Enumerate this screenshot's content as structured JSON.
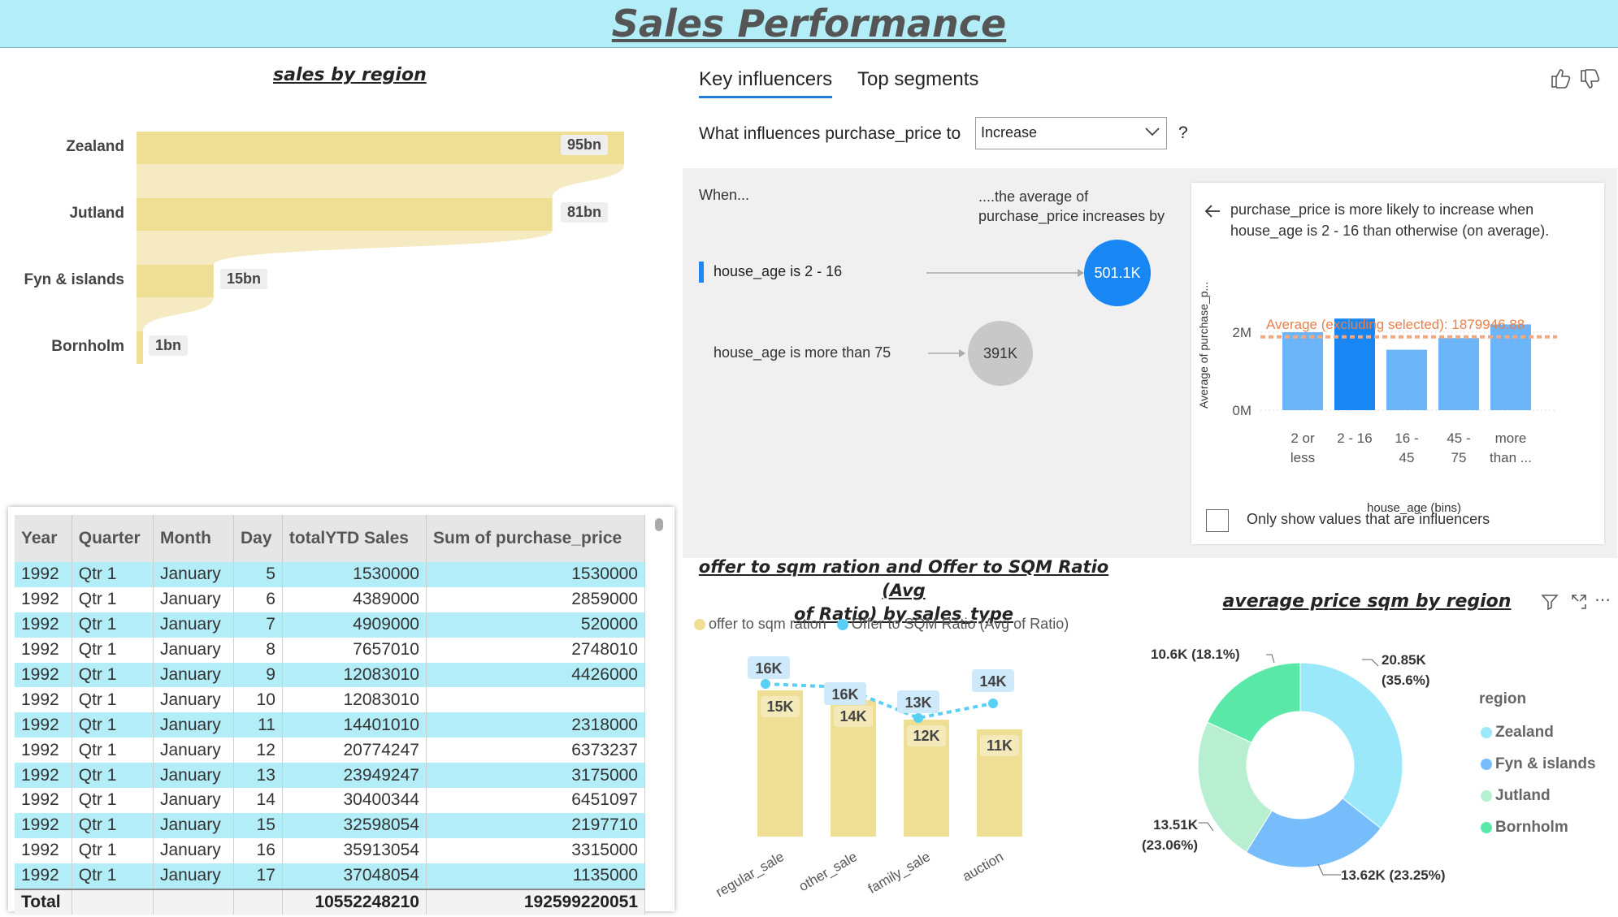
{
  "page_title": "Sales Performance",
  "sales_by_region": {
    "title": "sales by region",
    "rows": [
      {
        "label": "Zealand",
        "value_label": "95bn"
      },
      {
        "label": "Jutland",
        "value_label": "81bn"
      },
      {
        "label": "Fyn & islands",
        "value_label": "15bn"
      },
      {
        "label": "Bornholm",
        "value_label": "1bn"
      }
    ]
  },
  "key_influencers": {
    "tabs": [
      "Key influencers",
      "Top segments"
    ],
    "question_prefix": "What influences purchase_price to",
    "dropdown_value": "Increase",
    "question_mark": "?",
    "when_label": "When...",
    "avg_label": "....the average of purchase_price increases by",
    "influencers": [
      {
        "label": "house_age is 2 - 16",
        "value": "501.1K"
      },
      {
        "label": "house_age is more than 75",
        "value": "391K"
      }
    ],
    "detail": {
      "text": "purchase_price is more likely to increase when house_age is 2 - 16 than otherwise (on average).",
      "y_axis_label": "Average of purchase_p...",
      "y_ticks": [
        "2M",
        "0M"
      ],
      "x_axis_label": "house_age (bins)",
      "average_line_label": "Average (excluding selected): 1879946.88",
      "checkbox_label": "Only show values that are influencers"
    }
  },
  "table": {
    "headers": [
      "Year",
      "Quarter",
      "Month",
      "Day",
      "totalYTD Sales",
      "Sum of purchase_price"
    ],
    "rows": [
      [
        "1992",
        "Qtr 1",
        "January",
        "5",
        "1530000",
        "1530000"
      ],
      [
        "1992",
        "Qtr 1",
        "January",
        "6",
        "4389000",
        "2859000"
      ],
      [
        "1992",
        "Qtr 1",
        "January",
        "7",
        "4909000",
        "520000"
      ],
      [
        "1992",
        "Qtr 1",
        "January",
        "8",
        "7657010",
        "2748010"
      ],
      [
        "1992",
        "Qtr 1",
        "January",
        "9",
        "12083010",
        "4426000"
      ],
      [
        "1992",
        "Qtr 1",
        "January",
        "10",
        "12083010",
        ""
      ],
      [
        "1992",
        "Qtr 1",
        "January",
        "11",
        "14401010",
        "2318000"
      ],
      [
        "1992",
        "Qtr 1",
        "January",
        "12",
        "20774247",
        "6373237"
      ],
      [
        "1992",
        "Qtr 1",
        "January",
        "13",
        "23949247",
        "3175000"
      ],
      [
        "1992",
        "Qtr 1",
        "January",
        "14",
        "30400344",
        "6451097"
      ],
      [
        "1992",
        "Qtr 1",
        "January",
        "15",
        "32598054",
        "2197710"
      ],
      [
        "1992",
        "Qtr 1",
        "January",
        "16",
        "35913054",
        "3315000"
      ],
      [
        "1992",
        "Qtr 1",
        "January",
        "17",
        "37048054",
        "1135000"
      ]
    ],
    "total": [
      "Total",
      "",
      "",
      "",
      "10552248210",
      "192599220051"
    ]
  },
  "offer_chart": {
    "title_line1": "offer to sqm ration and Offer to SQM Ratio (Avg",
    "title_line2": "of Ratio) by sales_type",
    "legend": [
      "offer to sqm ration",
      "Offer to SQM Ratio (Avg of Ratio)"
    ]
  },
  "donut": {
    "title": "average price sqm by region",
    "legend_title": "region",
    "legend": [
      "Zealand",
      "Fyn & islands",
      "Jutland",
      "Bornholm"
    ],
    "labels": [
      {
        "line1": "20.85K",
        "line2": "(35.6%)"
      },
      {
        "line1": "13.62K (23.25%)",
        "line2": ""
      },
      {
        "line1": "13.51K",
        "line2": "(23.06%)"
      },
      {
        "line1": "10.6K (18.1%)",
        "line2": ""
      }
    ]
  },
  "chart_data": [
    {
      "type": "bar",
      "title": "sales by region",
      "categories": [
        "Zealand",
        "Jutland",
        "Fyn & islands",
        "Bornholm"
      ],
      "values": [
        95,
        81,
        15,
        1
      ],
      "units": "bn"
    },
    {
      "type": "bar",
      "title": "",
      "categories": [
        "2 or less",
        "2 - 16",
        "16 - 45",
        "45 - 75",
        "more than ..."
      ],
      "values": [
        2.0,
        2.35,
        1.55,
        1.85,
        2.2
      ],
      "ylabel": "Average of purchase_p...",
      "xlabel": "house_age (bins)",
      "y_units": "M",
      "ylim": [
        0,
        2.5
      ],
      "reference_line": 1.88
    },
    {
      "type": "bar",
      "title": "offer to sqm ration and Offer to SQM Ratio (Avg of Ratio) by sales_type",
      "categories": [
        "regular_sale",
        "other_sale",
        "family_sale",
        "auction"
      ],
      "series": [
        {
          "name": "offer to sqm ration",
          "values": [
            15,
            14,
            12,
            11
          ],
          "labels": [
            "15K",
            "14K",
            "12K",
            "11K"
          ],
          "color": "#efdf94"
        },
        {
          "name": "Offer to SQM Ratio (Avg of Ratio)",
          "values": [
            16,
            16,
            13,
            14
          ],
          "labels": [
            "16K",
            "16K",
            "13K",
            "14K"
          ],
          "color": "#59d0f3"
        }
      ],
      "ylim": [
        0,
        20
      ]
    },
    {
      "type": "pie",
      "title": "average price sqm by region",
      "categories": [
        "Zealand",
        "Fyn & islands",
        "Jutland",
        "Bornholm"
      ],
      "values": [
        20.85,
        13.62,
        13.51,
        10.6
      ],
      "percent": [
        35.6,
        23.25,
        23.06,
        18.1
      ],
      "colors": [
        "#9be8fb",
        "#78bdfb",
        "#b8efd1",
        "#5ae8a9"
      ]
    }
  ]
}
